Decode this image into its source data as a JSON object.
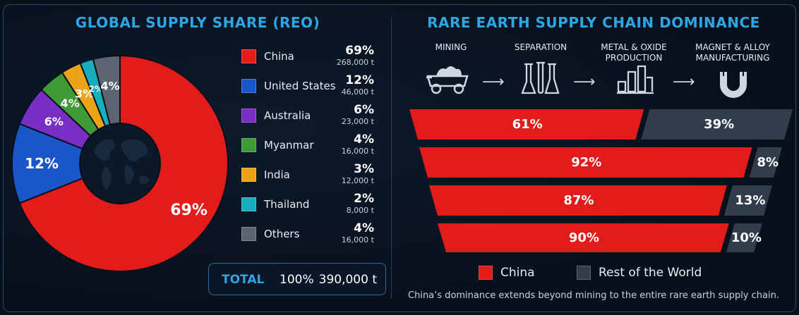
{
  "left_panel": {
    "title": "GLOBAL SUPPLY SHARE (REO)",
    "total": {
      "label": "TOTAL",
      "pct": "100%",
      "value": "390,000 t"
    }
  },
  "right_panel": {
    "title": "RARE EARTH SUPPLY CHAIN DOMINANCE",
    "stages": [
      "MINING",
      "SEPARATION",
      "METAL & OXIDE\nPRODUCTION",
      "MAGNET & ALLOY\nMANUFACTURING"
    ],
    "legend": [
      "China",
      "Rest of the World"
    ],
    "footnote": "China’s dominance extends beyond mining to the entire rare earth supply chain."
  },
  "colors": {
    "china": "#e21b1b",
    "united_states": "#1a56c8",
    "australia": "#7a2ec4",
    "myanmar": "#3e9a37",
    "india": "#eba317",
    "thailand": "#17aebd",
    "others": "#5c6470",
    "rest_of_world": "#323d4c",
    "accent": "#2ba7e6"
  },
  "chart_data": [
    {
      "type": "pie",
      "title": "GLOBAL SUPPLY SHARE (REO)",
      "categories": [
        "China",
        "United States",
        "Australia",
        "Myanmar",
        "India",
        "Thailand",
        "Others"
      ],
      "values": [
        69,
        12,
        6,
        4,
        3,
        2,
        4
      ],
      "value_labels": [
        "69%",
        "12%",
        "6%",
        "4%",
        "3%",
        "2%",
        "4%"
      ],
      "tonnage": [
        "268,000 t",
        "46,000 t",
        "23,000 t",
        "16,000 t",
        "12,000 t",
        "8,000 t",
        "16,000 t"
      ],
      "color_keys": [
        "china",
        "united_states",
        "australia",
        "myanmar",
        "india",
        "thailand",
        "others"
      ],
      "legend_position": "right"
    },
    {
      "type": "bar",
      "title": "RARE EARTH SUPPLY CHAIN DOMINANCE",
      "categories": [
        "MINING",
        "SEPARATION",
        "METAL & OXIDE PRODUCTION",
        "MAGNET & ALLOY MANUFACTURING"
      ],
      "series": [
        {
          "name": "China",
          "values": [
            61,
            92,
            87,
            90
          ],
          "labels": [
            "61%",
            "92%",
            "87%",
            "90%"
          ]
        },
        {
          "name": "Rest of the World",
          "values": [
            39,
            8,
            13,
            10
          ],
          "labels": [
            "39%",
            "8%",
            "13%",
            "10%"
          ]
        }
      ],
      "stacked": true,
      "legend_position": "bottom"
    }
  ]
}
